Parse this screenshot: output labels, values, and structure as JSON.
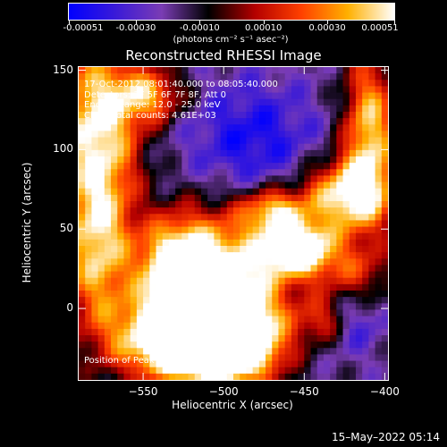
{
  "colorbar": {
    "tick_labels": [
      "-0.00051",
      "-0.00030",
      "-0.00010",
      "0.00010",
      "0.00030",
      "0.00051"
    ],
    "unit_label": "(photons cm⁻² s⁻¹ asec⁻²)",
    "colors": [
      "#0000ff",
      "#3a1ad8",
      "#7a3cb4",
      "#000000",
      "#b40000",
      "#ff4000",
      "#ffb000",
      "#ffffff"
    ]
  },
  "chart_data": {
    "type": "heatmap",
    "title": "Reconstructed RHESSI Image",
    "xlabel": "Heliocentric X (arcsec)",
    "ylabel": "Heliocentric Y (arcsec)",
    "xlim": [
      -590,
      -398
    ],
    "ylim": [
      -45,
      152
    ],
    "x_ticks": [
      -550,
      -500,
      -450,
      -400
    ],
    "y_ticks": [
      0,
      50,
      100,
      150
    ],
    "x_tick_labels": [
      "−550",
      "−500",
      "−450",
      "−400"
    ],
    "y_tick_labels": [
      "0",
      "50",
      "100",
      "150"
    ],
    "value_range": [
      -0.00051,
      0.00051
    ],
    "peak_position": [
      -541,
      -32
    ],
    "annotations": [
      "17-Oct-2012 08:01:40.000 to 08:05:40.000",
      "Detectors: 3F 5F 6F 7F 8F, Att 0",
      "Energy Range: 12.0 - 25.0 keV",
      "Clean    Total counts: 4.61E+03"
    ],
    "peak_text": "Position of Peak = [−541,−32]"
  },
  "footer": {
    "timestamp": "15–May–2022 05:14"
  }
}
